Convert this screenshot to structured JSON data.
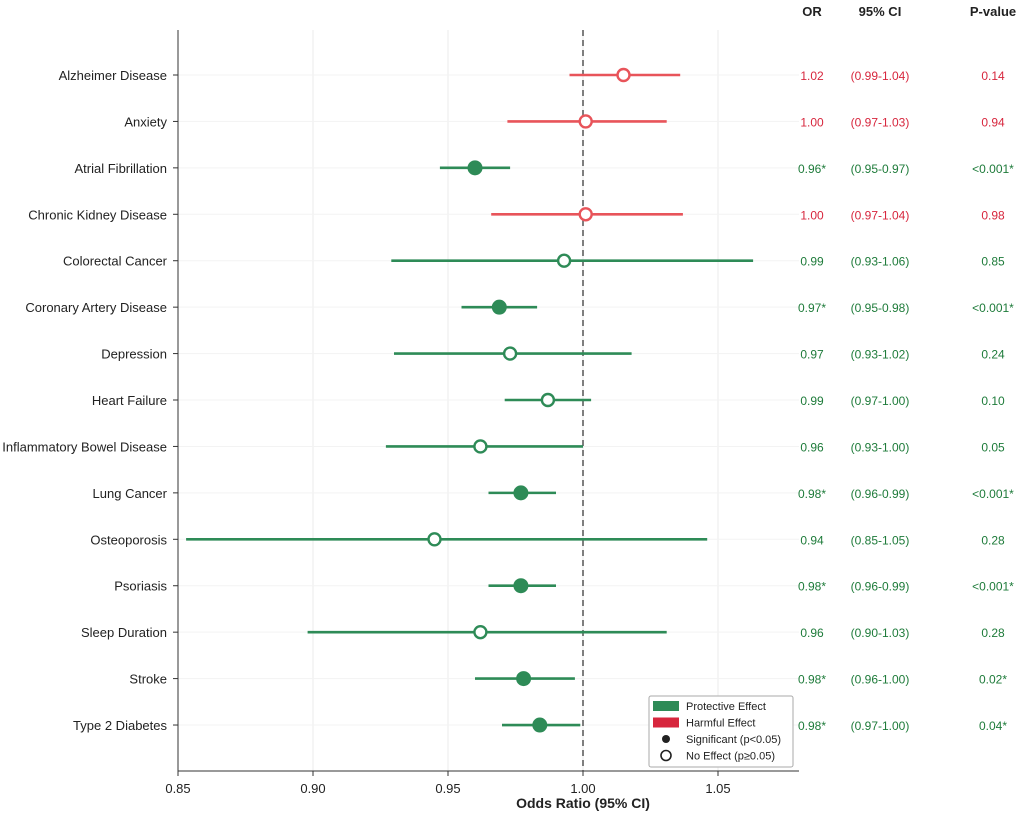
{
  "chart_data": {
    "type": "forest",
    "xlabel": "Odds Ratio (95% CI)",
    "xlim": [
      0.85,
      1.08
    ],
    "xticks": [
      0.85,
      0.9,
      0.95,
      1.0,
      1.05
    ],
    "xtick_labels": [
      "0.85",
      "0.90",
      "0.95",
      "1.00",
      "1.05"
    ],
    "reference_line": 1.0,
    "grid": true,
    "colors": {
      "protective": "#2e8b57",
      "harmful": "#e8545a",
      "harmful_text": "#d7263d",
      "protective_text": "#1e7b3a"
    },
    "column_headers": {
      "or": "OR",
      "ci": "95% CI",
      "p": "P-value"
    },
    "rows": [
      {
        "label": "Alzheimer Disease",
        "or": 1.015,
        "lo": 0.995,
        "hi": 1.036,
        "effect": "harmful",
        "significant": false,
        "or_text": "1.02",
        "ci_text": "(0.99-1.04)",
        "p_text": "0.14"
      },
      {
        "label": "Anxiety",
        "or": 1.001,
        "lo": 0.972,
        "hi": 1.031,
        "effect": "harmful",
        "significant": false,
        "or_text": "1.00",
        "ci_text": "(0.97-1.03)",
        "p_text": "0.94"
      },
      {
        "label": "Atrial Fibrillation",
        "or": 0.96,
        "lo": 0.947,
        "hi": 0.973,
        "effect": "protective",
        "significant": true,
        "or_text": "0.96*",
        "ci_text": "(0.95-0.97)",
        "p_text": "<0.001*"
      },
      {
        "label": "Chronic Kidney Disease",
        "or": 1.001,
        "lo": 0.966,
        "hi": 1.037,
        "effect": "harmful",
        "significant": false,
        "or_text": "1.00",
        "ci_text": "(0.97-1.04)",
        "p_text": "0.98"
      },
      {
        "label": "Colorectal Cancer",
        "or": 0.993,
        "lo": 0.929,
        "hi": 1.063,
        "effect": "protective",
        "significant": false,
        "or_text": "0.99",
        "ci_text": "(0.93-1.06)",
        "p_text": "0.85"
      },
      {
        "label": "Coronary Artery Disease",
        "or": 0.969,
        "lo": 0.955,
        "hi": 0.983,
        "effect": "protective",
        "significant": true,
        "or_text": "0.97*",
        "ci_text": "(0.95-0.98)",
        "p_text": "<0.001*"
      },
      {
        "label": "Depression",
        "or": 0.973,
        "lo": 0.93,
        "hi": 1.018,
        "effect": "protective",
        "significant": false,
        "or_text": "0.97",
        "ci_text": "(0.93-1.02)",
        "p_text": "0.24"
      },
      {
        "label": "Heart Failure",
        "or": 0.987,
        "lo": 0.971,
        "hi": 1.003,
        "effect": "protective",
        "significant": false,
        "or_text": "0.99",
        "ci_text": "(0.97-1.00)",
        "p_text": "0.10"
      },
      {
        "label": "Inflammatory Bowel Disease",
        "or": 0.962,
        "lo": 0.927,
        "hi": 1.0,
        "effect": "protective",
        "significant": false,
        "or_text": "0.96",
        "ci_text": "(0.93-1.00)",
        "p_text": "0.05"
      },
      {
        "label": "Lung Cancer",
        "or": 0.977,
        "lo": 0.965,
        "hi": 0.99,
        "effect": "protective",
        "significant": true,
        "or_text": "0.98*",
        "ci_text": "(0.96-0.99)",
        "p_text": "<0.001*"
      },
      {
        "label": "Osteoporosis",
        "or": 0.945,
        "lo": 0.853,
        "hi": 1.046,
        "effect": "protective",
        "significant": false,
        "or_text": "0.94",
        "ci_text": "(0.85-1.05)",
        "p_text": "0.28"
      },
      {
        "label": "Psoriasis",
        "or": 0.977,
        "lo": 0.965,
        "hi": 0.99,
        "effect": "protective",
        "significant": true,
        "or_text": "0.98*",
        "ci_text": "(0.96-0.99)",
        "p_text": "<0.001*"
      },
      {
        "label": "Sleep Duration",
        "or": 0.962,
        "lo": 0.898,
        "hi": 1.031,
        "effect": "protective",
        "significant": false,
        "or_text": "0.96",
        "ci_text": "(0.90-1.03)",
        "p_text": "0.28"
      },
      {
        "label": "Stroke",
        "or": 0.978,
        "lo": 0.96,
        "hi": 0.997,
        "effect": "protective",
        "significant": true,
        "or_text": "0.98*",
        "ci_text": "(0.96-1.00)",
        "p_text": "0.02*"
      },
      {
        "label": "Type 2 Diabetes",
        "or": 0.984,
        "lo": 0.97,
        "hi": 0.999,
        "effect": "protective",
        "significant": true,
        "or_text": "0.98*",
        "ci_text": "(0.97-1.00)",
        "p_text": "0.04*"
      }
    ],
    "legend": {
      "position": "bottom-right",
      "items": [
        {
          "label": "Protective Effect",
          "kind": "patch",
          "effect": "protective"
        },
        {
          "label": "Harmful Effect",
          "kind": "patch",
          "effect": "harmful"
        },
        {
          "label": "Significant (p<0.05)",
          "kind": "filled"
        },
        {
          "label": "No Effect (p≥0.05)",
          "kind": "open"
        }
      ]
    }
  }
}
